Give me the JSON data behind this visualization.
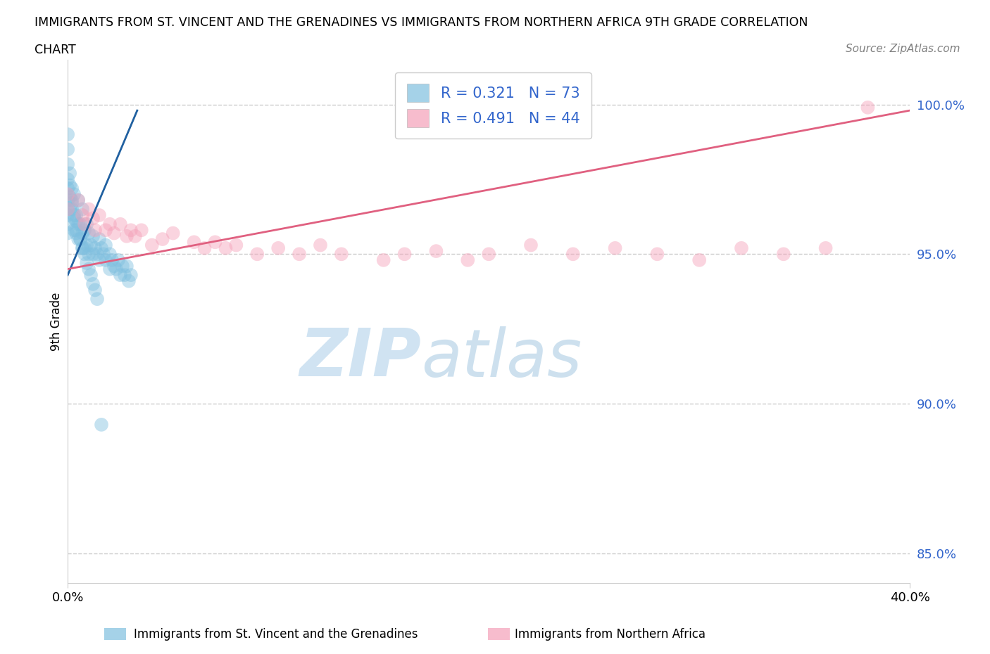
{
  "title_line1": "IMMIGRANTS FROM ST. VINCENT AND THE GRENADINES VS IMMIGRANTS FROM NORTHERN AFRICA 9TH GRADE CORRELATION",
  "title_line2": "CHART",
  "source_text": "Source: ZipAtlas.com",
  "ylabel": "9th Grade",
  "xlim": [
    0.0,
    0.4
  ],
  "ylim": [
    0.84,
    1.015
  ],
  "yticks": [
    0.85,
    0.9,
    0.95,
    1.0
  ],
  "ytick_labels": [
    "85.0%",
    "90.0%",
    "95.0%",
    "100.0%"
  ],
  "xticks": [
    0.0,
    0.4
  ],
  "xtick_labels": [
    "0.0%",
    "40.0%"
  ],
  "watermark_zip": "ZIP",
  "watermark_atlas": "atlas",
  "legend_r1": "R = 0.321",
  "legend_n1": "N = 73",
  "legend_r2": "R = 0.491",
  "legend_n2": "N = 44",
  "color_blue": "#7fbfdf",
  "color_pink": "#f4a0b8",
  "color_blue_line": "#2060a0",
  "color_pink_line": "#e06080",
  "color_axis_text": "#3366cc",
  "bottom_label1": "Immigrants from St. Vincent and the Grenadines",
  "bottom_label2": "Immigrants from Northern Africa",
  "blue_scatter_x": [
    0.0,
    0.0,
    0.0,
    0.0,
    0.0,
    0.0,
    0.0,
    0.0,
    0.0,
    0.0,
    0.002,
    0.002,
    0.002,
    0.003,
    0.003,
    0.003,
    0.004,
    0.004,
    0.005,
    0.005,
    0.005,
    0.006,
    0.006,
    0.007,
    0.007,
    0.007,
    0.008,
    0.008,
    0.009,
    0.009,
    0.01,
    0.01,
    0.011,
    0.012,
    0.012,
    0.013,
    0.014,
    0.015,
    0.015,
    0.016,
    0.017,
    0.018,
    0.018,
    0.02,
    0.02,
    0.021,
    0.022,
    0.023,
    0.024,
    0.025,
    0.026,
    0.027,
    0.028,
    0.029,
    0.03,
    0.001,
    0.001,
    0.001,
    0.001,
    0.002,
    0.003,
    0.004,
    0.004,
    0.006,
    0.007,
    0.008,
    0.009,
    0.01,
    0.011,
    0.012,
    0.013,
    0.014,
    0.016
  ],
  "blue_scatter_y": [
    0.99,
    0.985,
    0.98,
    0.975,
    0.972,
    0.968,
    0.965,
    0.963,
    0.96,
    0.957,
    0.972,
    0.968,
    0.965,
    0.97,
    0.962,
    0.958,
    0.963,
    0.958,
    0.968,
    0.96,
    0.955,
    0.96,
    0.955,
    0.965,
    0.957,
    0.952,
    0.958,
    0.952,
    0.96,
    0.953,
    0.957,
    0.95,
    0.953,
    0.956,
    0.95,
    0.952,
    0.95,
    0.955,
    0.948,
    0.952,
    0.95,
    0.953,
    0.948,
    0.95,
    0.945,
    0.948,
    0.946,
    0.945,
    0.948,
    0.943,
    0.946,
    0.943,
    0.946,
    0.941,
    0.943,
    0.977,
    0.973,
    0.969,
    0.965,
    0.967,
    0.963,
    0.961,
    0.957,
    0.955,
    0.952,
    0.95,
    0.947,
    0.945,
    0.943,
    0.94,
    0.938,
    0.935,
    0.893
  ],
  "pink_scatter_x": [
    0.0,
    0.0,
    0.005,
    0.007,
    0.008,
    0.01,
    0.012,
    0.013,
    0.015,
    0.018,
    0.02,
    0.022,
    0.025,
    0.028,
    0.03,
    0.032,
    0.035,
    0.04,
    0.045,
    0.05,
    0.06,
    0.065,
    0.07,
    0.075,
    0.08,
    0.09,
    0.1,
    0.11,
    0.12,
    0.13,
    0.15,
    0.16,
    0.175,
    0.19,
    0.2,
    0.22,
    0.24,
    0.26,
    0.28,
    0.3,
    0.32,
    0.34,
    0.36,
    0.38
  ],
  "pink_scatter_y": [
    0.97,
    0.965,
    0.968,
    0.963,
    0.96,
    0.965,
    0.962,
    0.958,
    0.963,
    0.958,
    0.96,
    0.957,
    0.96,
    0.956,
    0.958,
    0.956,
    0.958,
    0.953,
    0.955,
    0.957,
    0.954,
    0.952,
    0.954,
    0.952,
    0.953,
    0.95,
    0.952,
    0.95,
    0.953,
    0.95,
    0.948,
    0.95,
    0.951,
    0.948,
    0.95,
    0.953,
    0.95,
    0.952,
    0.95,
    0.948,
    0.952,
    0.95,
    0.952,
    0.999
  ],
  "blue_line_x": [
    0.0,
    0.033
  ],
  "blue_line_y": [
    0.943,
    0.998
  ],
  "pink_line_x": [
    0.0,
    0.4
  ],
  "pink_line_y": [
    0.945,
    0.998
  ]
}
